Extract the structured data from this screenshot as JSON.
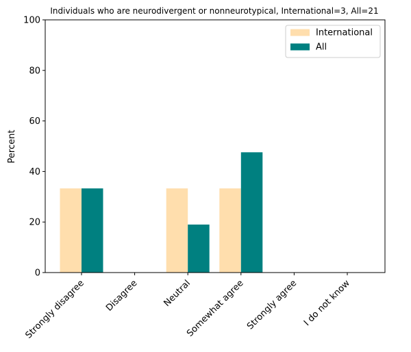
{
  "chart_data": {
    "type": "bar",
    "title": "Individuals who are neurodivergent or nonneurotypical, International=3, All=21",
    "xlabel": "",
    "ylabel": "Percent",
    "ylim": [
      0,
      100
    ],
    "yticks": [
      0,
      20,
      40,
      60,
      80,
      100
    ],
    "categories": [
      "Strongly disagree",
      "Disagree",
      "Neutral",
      "Somewhat agree",
      "Strongly agree",
      "I do not know"
    ],
    "series": [
      {
        "name": "International",
        "color": "#FFDEAD",
        "values": [
          33.3,
          0,
          33.3,
          33.3,
          0,
          0
        ]
      },
      {
        "name": "All",
        "color": "#008080",
        "values": [
          33.3,
          0,
          19.0,
          47.6,
          0,
          0
        ]
      }
    ],
    "legend_position": "top-right",
    "grid": false
  }
}
